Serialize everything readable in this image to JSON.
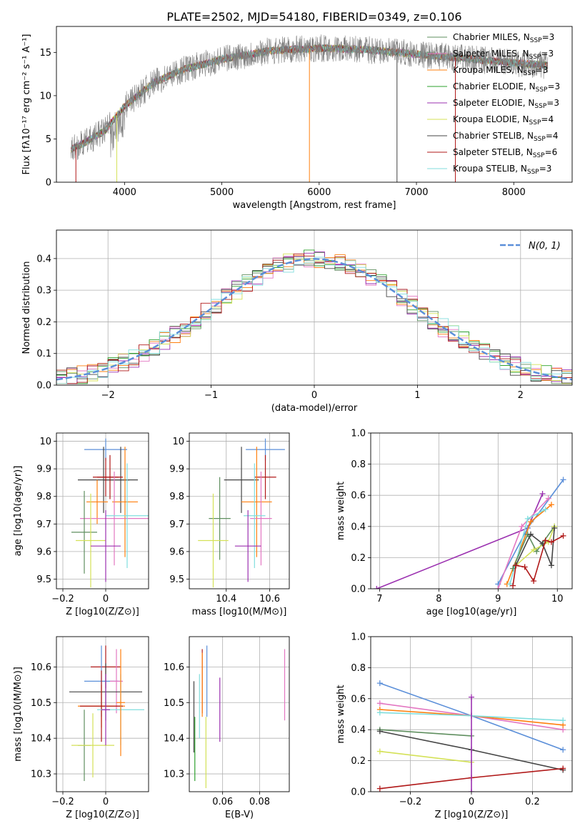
{
  "colors": {
    "chabrier_miles": "#5f8f5f",
    "salpeter_miles": "#e377c2",
    "kroupa_miles": "#ff7f0e",
    "chabrier_elodie": "#2ca02c",
    "salpeter_elodie": "#9b30b0",
    "kroupa_elodie": "#d4e157",
    "chabrier_stelib": "#444444",
    "salpeter_stelib": "#b01818",
    "kroupa_stelib": "#80dede",
    "gaussian": "#5b8fd9",
    "grid": "#b0b0b0"
  },
  "chart_data": [
    {
      "id": "spectrum",
      "type": "line",
      "title": "PLATE=2502, MJD=54180, FIBERID=0349, z=0.106",
      "xlabel": "wavelength [Angstrom, rest frame]",
      "ylabel": "Flux [fλ10⁻¹⁷ erg cm⁻² s⁻¹ A⁻¹]",
      "xlim": [
        3300,
        8600
      ],
      "ylim": [
        0,
        18
      ],
      "xticks": [
        4000,
        5000,
        6000,
        7000,
        8000
      ],
      "yticks": [
        0,
        5,
        10,
        15
      ],
      "grid": false,
      "legend_position": "right",
      "legend": [
        {
          "label": "Chabrier MILES, N",
          "sub": "SSP",
          "suffix": "=3",
          "color": "chabrier_miles"
        },
        {
          "label": "Salpeter MILES, N",
          "sub": "SSP",
          "suffix": "=3",
          "color": "salpeter_miles"
        },
        {
          "label": "Kroupa MILES, N",
          "sub": "SSP",
          "suffix": "=3",
          "color": "kroupa_miles"
        },
        {
          "label": "Chabrier ELODIE, N",
          "sub": "SSP",
          "suffix": "=3",
          "color": "chabrier_elodie"
        },
        {
          "label": "Salpeter ELODIE, N",
          "sub": "SSP",
          "suffix": "=3",
          "color": "salpeter_elodie"
        },
        {
          "label": "Kroupa ELODIE, N",
          "sub": "SSP",
          "suffix": "=4",
          "color": "kroupa_elodie"
        },
        {
          "label": "Chabrier STELIB, N",
          "sub": "SSP",
          "suffix": "=4",
          "color": "chabrier_stelib"
        },
        {
          "label": "Salpeter STELIB, N",
          "sub": "SSP",
          "suffix": "=6",
          "color": "salpeter_stelib"
        },
        {
          "label": "Kroupa STELIB, N",
          "sub": "SSP",
          "suffix": "=3",
          "color": "kroupa_stelib"
        }
      ],
      "continuum": [
        [
          3450,
          3.8
        ],
        [
          3600,
          4.6
        ],
        [
          3800,
          6.0
        ],
        [
          4000,
          8.8
        ],
        [
          4300,
          11.5
        ],
        [
          4600,
          13.0
        ],
        [
          5000,
          14.2
        ],
        [
          5500,
          15.2
        ],
        [
          6000,
          15.5
        ],
        [
          6500,
          15.3
        ],
        [
          7000,
          14.8
        ],
        [
          7500,
          14.3
        ],
        [
          8000,
          13.8
        ],
        [
          8350,
          13.5
        ]
      ]
    },
    {
      "id": "residuals",
      "type": "histogram",
      "xlabel": "(data-model)/error",
      "ylabel": "Normed distribution",
      "xlim": [
        -2.5,
        2.5
      ],
      "ylim": [
        0,
        0.49
      ],
      "xticks": [
        -2,
        -1,
        0,
        1,
        2
      ],
      "yticks": [
        0.0,
        0.1,
        0.2,
        0.3,
        0.4
      ],
      "grid": true,
      "legend_position": "top-right",
      "legend": [
        {
          "label": "N(0, 1)",
          "color": "gaussian",
          "style": "dashed"
        }
      ],
      "bin_width": 0.1
    },
    {
      "id": "age_vs_Z",
      "type": "errorbar",
      "xlabel": "Z [log10(Z/Z⊙)]",
      "ylabel": "age  [log10(age/yr)]",
      "xlim": [
        -0.23,
        0.2
      ],
      "ylim": [
        9.465,
        10.03
      ],
      "xticks": [
        -0.2,
        0.0
      ],
      "yticks": [
        9.5,
        9.6,
        9.7,
        9.8,
        9.9,
        10.0
      ],
      "grid": true,
      "points": [
        {
          "x": 0.0,
          "xerr": 0.1,
          "y": 9.97,
          "yerr": 0.04,
          "color": "gaussian"
        },
        {
          "x": 0.07,
          "xerr": 0.08,
          "y": 9.86,
          "yerr": 0.12,
          "color": "chabrier_stelib"
        },
        {
          "x": -0.01,
          "xerr": 0.12,
          "y": 9.86,
          "yerr": 0.12,
          "color": "chabrier_stelib"
        },
        {
          "x": 0.02,
          "xerr": 0.06,
          "y": 9.87,
          "yerr": 0.08,
          "color": "salpeter_stelib"
        },
        {
          "x": 0.0,
          "xerr": 0.06,
          "y": 9.87,
          "yerr": 0.07,
          "color": "salpeter_stelib"
        },
        {
          "x": 0.09,
          "xerr": 0.06,
          "y": 9.78,
          "yerr": 0.2,
          "color": "kroupa_miles"
        },
        {
          "x": -0.04,
          "xerr": 0.05,
          "y": 9.78,
          "yerr": 0.08,
          "color": "kroupa_miles"
        },
        {
          "x": 0.04,
          "xerr": 0.16,
          "y": 9.72,
          "yerr": 0.17,
          "color": "salpeter_miles"
        },
        {
          "x": 0.1,
          "xerr": 0.1,
          "y": 9.73,
          "yerr": 0.19,
          "color": "kroupa_stelib"
        },
        {
          "x": -0.1,
          "xerr": 0.06,
          "y": 9.67,
          "yerr": 0.15,
          "color": "chabrier_miles"
        },
        {
          "x": -0.07,
          "xerr": 0.07,
          "y": 9.64,
          "yerr": 0.17,
          "color": "kroupa_elodie"
        },
        {
          "x": 0.0,
          "xerr": 0.07,
          "y": 9.62,
          "yerr": 0.13,
          "color": "salpeter_elodie"
        }
      ]
    },
    {
      "id": "age_vs_mass",
      "type": "errorbar",
      "xlabel": "mass [log10(M/M⊙)]",
      "ylabel": "",
      "xlim": [
        10.23,
        10.69
      ],
      "ylim": [
        9.465,
        10.03
      ],
      "xticks": [
        10.4,
        10.6
      ],
      "yticks": [
        9.5,
        9.6,
        9.7,
        9.8,
        9.9,
        10.0
      ],
      "grid": true,
      "points": [
        {
          "x": 10.58,
          "xerr": 0.09,
          "y": 9.97,
          "yerr": 0.04,
          "color": "gaussian"
        },
        {
          "x": 10.47,
          "xerr": 0.08,
          "y": 9.86,
          "yerr": 0.12,
          "color": "chabrier_stelib"
        },
        {
          "x": 10.58,
          "xerr": 0.05,
          "y": 9.87,
          "yerr": 0.08,
          "color": "salpeter_stelib"
        },
        {
          "x": 10.54,
          "xerr": 0.07,
          "y": 9.78,
          "yerr": 0.2,
          "color": "kroupa_miles"
        },
        {
          "x": 10.56,
          "xerr": 0.05,
          "y": 9.72,
          "yerr": 0.17,
          "color": "salpeter_miles"
        },
        {
          "x": 10.53,
          "xerr": 0.05,
          "y": 9.73,
          "yerr": 0.19,
          "color": "kroupa_stelib"
        },
        {
          "x": 10.37,
          "xerr": 0.05,
          "y": 9.72,
          "yerr": 0.15,
          "color": "chabrier_miles"
        },
        {
          "x": 10.34,
          "xerr": 0.07,
          "y": 9.64,
          "yerr": 0.17,
          "color": "kroupa_elodie"
        },
        {
          "x": 10.5,
          "xerr": 0.06,
          "y": 9.62,
          "yerr": 0.13,
          "color": "salpeter_elodie"
        }
      ]
    },
    {
      "id": "weight_vs_age",
      "type": "line",
      "xlabel": "age  [log10(age/yr)]",
      "ylabel": "mass weight",
      "xlim": [
        6.85,
        10.25
      ],
      "ylim": [
        0,
        1.0
      ],
      "xticks": [
        7,
        8,
        9,
        10
      ],
      "yticks": [
        0.0,
        0.2,
        0.4,
        0.6,
        0.8,
        1.0
      ],
      "grid": true,
      "series": [
        {
          "color": "salpeter_elodie",
          "points": [
            [
              6.95,
              0.0
            ],
            [
              9.5,
              0.39
            ],
            [
              9.75,
              0.61
            ]
          ]
        },
        {
          "color": "gaussian",
          "points": [
            [
              9.0,
              0.03
            ],
            [
              9.5,
              0.39
            ],
            [
              10.1,
              0.7
            ]
          ]
        },
        {
          "color": "salpeter_miles",
          "points": [
            [
              9.0,
              0.0
            ],
            [
              9.4,
              0.4
            ],
            [
              9.85,
              0.58
            ]
          ]
        },
        {
          "color": "kroupa_miles",
          "points": [
            [
              9.15,
              0.03
            ],
            [
              9.55,
              0.43
            ],
            [
              9.9,
              0.54
            ]
          ]
        },
        {
          "color": "kroupa_stelib",
          "points": [
            [
              9.2,
              0.03
            ],
            [
              9.5,
              0.45
            ],
            [
              9.8,
              0.51
            ]
          ]
        },
        {
          "color": "chabrier_miles",
          "points": [
            [
              9.25,
              0.13
            ],
            [
              9.5,
              0.35
            ],
            [
              9.65,
              0.24
            ],
            [
              9.95,
              0.4
            ]
          ]
        },
        {
          "color": "kroupa_elodie",
          "points": [
            [
              9.3,
              0.15
            ],
            [
              9.6,
              0.25
            ],
            [
              9.85,
              0.3
            ],
            [
              9.95,
              0.4
            ]
          ]
        },
        {
          "color": "chabrier_stelib",
          "points": [
            [
              9.3,
              0.15
            ],
            [
              9.55,
              0.35
            ],
            [
              9.75,
              0.29
            ],
            [
              9.9,
              0.15
            ],
            [
              9.95,
              0.39
            ]
          ]
        },
        {
          "color": "salpeter_stelib",
          "points": [
            [
              9.25,
              0.02
            ],
            [
              9.3,
              0.15
            ],
            [
              9.45,
              0.14
            ],
            [
              9.6,
              0.05
            ],
            [
              9.8,
              0.31
            ],
            [
              9.9,
              0.3
            ],
            [
              10.1,
              0.34
            ]
          ]
        }
      ]
    },
    {
      "id": "mass_vs_Z",
      "type": "errorbar",
      "xlabel": "Z [log10(Z/Z⊙)]",
      "ylabel": "mass [log10(M/M⊙)]",
      "xlim": [
        -0.23,
        0.2
      ],
      "ylim": [
        10.25,
        10.685
      ],
      "xticks": [
        -0.2,
        0.0
      ],
      "yticks": [
        10.3,
        10.4,
        10.5,
        10.6
      ],
      "grid": true,
      "points": [
        {
          "x": 0.0,
          "xerr": 0.07,
          "y": 10.6,
          "yerr": 0.06,
          "color": "salpeter_stelib"
        },
        {
          "x": -0.02,
          "xerr": 0.08,
          "y": 10.56,
          "yerr": 0.1,
          "color": "gaussian"
        },
        {
          "x": 0.05,
          "xerr": 0.03,
          "y": 10.56,
          "yerr": 0.09,
          "color": "salpeter_miles"
        },
        {
          "x": 0.0,
          "xerr": 0.17,
          "y": 10.53,
          "yerr": 0.08,
          "color": "chabrier_stelib"
        },
        {
          "x": -0.02,
          "xerr": 0.11,
          "y": 10.49,
          "yerr": 0.06,
          "color": "kroupa_miles"
        },
        {
          "x": -0.02,
          "xerr": 0.1,
          "y": 10.49,
          "yerr": 0.1,
          "color": "salpeter_stelib"
        },
        {
          "x": 0.07,
          "xerr": 0.11,
          "y": 10.48,
          "yerr": 0.1,
          "color": "kroupa_stelib"
        },
        {
          "x": -0.1,
          "xerr": 0.03,
          "y": 10.38,
          "yerr": 0.1,
          "color": "chabrier_miles"
        },
        {
          "x": -0.06,
          "xerr": 0.1,
          "y": 10.38,
          "yerr": 0.09,
          "color": "kroupa_elodie"
        },
        {
          "x": 0.07,
          "xerr": 0.02,
          "y": 10.5,
          "yerr": 0.15,
          "color": "kroupa_miles"
        },
        {
          "x": 0.0,
          "xerr": 0.02,
          "y": 10.48,
          "yerr": 0.1,
          "color": "salpeter_elodie"
        }
      ]
    },
    {
      "id": "mass_vs_ebv",
      "type": "errorbar",
      "xlabel": "E(B-V)",
      "ylabel": "",
      "xlim": [
        0.042,
        0.096
      ],
      "ylim": [
        10.25,
        10.685
      ],
      "xticks": [
        0.06,
        0.08
      ],
      "yticks": [
        10.3,
        10.4,
        10.5,
        10.6
      ],
      "grid": true,
      "points": [
        {
          "x": 0.0445,
          "yerr": 0.1,
          "y": 10.46,
          "color": "chabrier_stelib"
        },
        {
          "x": 0.045,
          "yerr": 0.09,
          "y": 10.37,
          "color": "chabrier_elodie"
        },
        {
          "x": 0.0475,
          "yerr": 0.09,
          "y": 10.49,
          "color": "kroupa_stelib"
        },
        {
          "x": 0.049,
          "yerr": 0.09,
          "y": 10.56,
          "color": "salpeter_stelib"
        },
        {
          "x": 0.049,
          "yerr": 0.09,
          "y": 10.55,
          "color": "kroupa_miles"
        },
        {
          "x": 0.0515,
          "yerr": 0.1,
          "y": 10.56,
          "color": "gaussian"
        },
        {
          "x": 0.051,
          "yerr": 0.1,
          "y": 10.36,
          "color": "kroupa_elodie"
        },
        {
          "x": 0.0585,
          "yerr": 0.09,
          "y": 10.48,
          "color": "salpeter_elodie"
        },
        {
          "x": 0.0935,
          "yerr": 0.1,
          "y": 10.55,
          "color": "salpeter_miles"
        }
      ]
    },
    {
      "id": "weight_vs_Z",
      "type": "line",
      "xlabel": "Z [log10(Z/Z⊙)]",
      "ylabel": "mass weight",
      "xlim": [
        -0.33,
        0.33
      ],
      "ylim": [
        0,
        1.0
      ],
      "xticks": [
        -0.2,
        0.0,
        0.2
      ],
      "yticks": [
        0.0,
        0.2,
        0.4,
        0.6,
        0.8,
        1.0
      ],
      "grid": true,
      "series": [
        {
          "color": "gaussian",
          "points": [
            [
              -0.3,
              0.7
            ],
            [
              0.0,
              0.49
            ],
            [
              0.3,
              0.27
            ]
          ]
        },
        {
          "color": "salpeter_miles",
          "points": [
            [
              -0.3,
              0.57
            ],
            [
              0.0,
              0.49
            ],
            [
              0.3,
              0.4
            ]
          ]
        },
        {
          "color": "kroupa_miles",
          "points": [
            [
              -0.3,
              0.53
            ],
            [
              0.0,
              0.49
            ],
            [
              0.3,
              0.43
            ]
          ]
        },
        {
          "color": "kroupa_stelib",
          "points": [
            [
              -0.3,
              0.51
            ],
            [
              0.0,
              0.49
            ],
            [
              0.3,
              0.46
            ]
          ]
        },
        {
          "color": "chabrier_miles",
          "points": [
            [
              -0.3,
              0.4
            ],
            [
              0.0,
              0.36
            ]
          ]
        },
        {
          "color": "chabrier_stelib",
          "points": [
            [
              -0.3,
              0.39
            ],
            [
              0.0,
              0.27
            ],
            [
              0.3,
              0.14
            ]
          ]
        },
        {
          "color": "kroupa_elodie",
          "points": [
            [
              -0.3,
              0.26
            ],
            [
              0.0,
              0.19
            ]
          ]
        },
        {
          "color": "salpeter_stelib",
          "points": [
            [
              -0.3,
              0.02
            ],
            [
              0.0,
              0.09
            ],
            [
              0.3,
              0.15
            ]
          ]
        },
        {
          "color": "salpeter_elodie",
          "points": [
            [
              0.0,
              0.0
            ],
            [
              0.0,
              0.61
            ]
          ]
        }
      ]
    }
  ]
}
